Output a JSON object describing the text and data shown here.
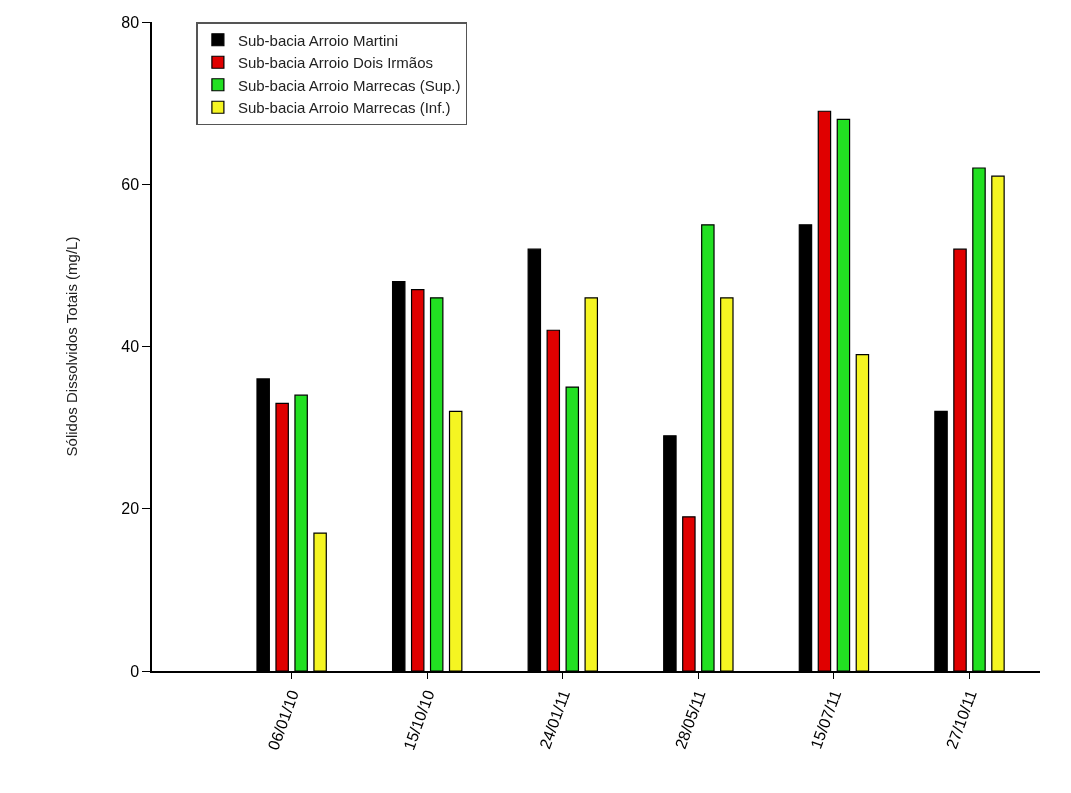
{
  "chart_data": {
    "type": "bar",
    "ylabel": "Sólidos Dissolvidos Totais (mg/L)",
    "categories": [
      "06/01/10",
      "15/10/10",
      "24/01/11",
      "28/05/11",
      "15/07/11",
      "27/10/11"
    ],
    "series": [
      {
        "name": "Sub-bacia Arroio Martini",
        "color": "#000000",
        "values": [
          36,
          48,
          52,
          29,
          55,
          32
        ]
      },
      {
        "name": "Sub-bacia Arroio Dois Irmãos",
        "color": "#e00000",
        "values": [
          33,
          47,
          42,
          19,
          69,
          52
        ]
      },
      {
        "name": "Sub-bacia Arroio Marrecas (Sup.)",
        "color": "#22e022",
        "values": [
          34,
          46,
          35,
          55,
          68,
          62
        ]
      },
      {
        "name": "Sub-bacia Arroio Marrecas (Inf.)",
        "color": "#f5f522",
        "values": [
          17,
          32,
          46,
          46,
          39,
          61
        ]
      }
    ],
    "ylim": [
      0,
      80
    ],
    "yticks": [
      0,
      20,
      40,
      60,
      80
    ],
    "legend": "top left"
  }
}
